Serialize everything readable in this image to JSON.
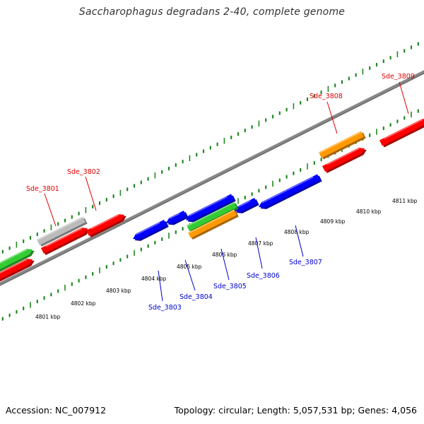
{
  "title": "Saccharophagus degradans 2-40, complete genome",
  "footer": {
    "accession": "Accession: NC_007912",
    "topology": "Topology: circular; Length: 5,057,531 bp; Genes: 4,056"
  },
  "colors": {
    "forward_cds": "#ff0000",
    "reverse_cds": "#0000ff",
    "rna": "#33cc33",
    "gene_feature": "#ff9900",
    "other_feature": "#bbbbbb",
    "backbone": "#888888",
    "tick": "#228822",
    "forward_label": "#dd0000",
    "reverse_label": "#0000cc"
  },
  "scale_labels": [
    {
      "text": "4801 kbp"
    },
    {
      "text": "4802 kbp"
    },
    {
      "text": "4803 kbp"
    },
    {
      "text": "4804 kbp"
    },
    {
      "text": "4805 kbp"
    },
    {
      "text": "4806 kbp"
    },
    {
      "text": "4807 kbp"
    },
    {
      "text": "4808 kbp"
    },
    {
      "text": "4809 kbp"
    },
    {
      "text": "4810 kbp"
    },
    {
      "text": "4811 kbp"
    }
  ],
  "gene_labels": [
    {
      "text": "Sde_3801",
      "strand": "forward"
    },
    {
      "text": "Sde_3802",
      "strand": "forward"
    },
    {
      "text": "Sde_3803",
      "strand": "reverse"
    },
    {
      "text": "Sde_3804",
      "strand": "reverse"
    },
    {
      "text": "Sde_3805",
      "strand": "reverse"
    },
    {
      "text": "Sde_3806",
      "strand": "reverse"
    },
    {
      "text": "Sde_3807",
      "strand": "reverse"
    },
    {
      "text": "Sde_3808",
      "strand": "forward"
    },
    {
      "text": "Sde_3809",
      "strand": "forward"
    }
  ]
}
